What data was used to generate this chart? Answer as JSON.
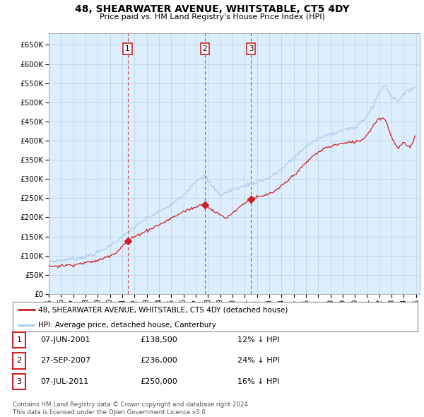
{
  "title": "48, SHEARWATER AVENUE, WHITSTABLE, CT5 4DY",
  "subtitle": "Price paid vs. HM Land Registry's House Price Index (HPI)",
  "hpi_color": "#aaccee",
  "price_color": "#cc2222",
  "dashed_color": "#cc2222",
  "bg_color": "#ffffff",
  "grid_color": "#bbccdd",
  "plot_bg": "#ddeeff",
  "ylim": [
    0,
    680000
  ],
  "yticks": [
    0,
    50000,
    100000,
    150000,
    200000,
    250000,
    300000,
    350000,
    400000,
    450000,
    500000,
    550000,
    600000,
    650000
  ],
  "year_start": 1995,
  "year_end": 2025,
  "sales": [
    {
      "label": "1",
      "date": "07-JUN-2001",
      "price": 138500,
      "year": 2001.44,
      "hpi_pct": "12% ↓ HPI"
    },
    {
      "label": "2",
      "date": "27-SEP-2007",
      "price": 236000,
      "year": 2007.74,
      "hpi_pct": "24% ↓ HPI"
    },
    {
      "label": "3",
      "date": "07-JUL-2011",
      "price": 250000,
      "year": 2011.52,
      "hpi_pct": "16% ↓ HPI"
    }
  ],
  "legend_line1": "48, SHEARWATER AVENUE, WHITSTABLE, CT5 4DY (detached house)",
  "legend_line2": "HPI: Average price, detached house, Canterbury",
  "footnote": "Contains HM Land Registry data © Crown copyright and database right 2024.\nThis data is licensed under the Open Government Licence v3.0.",
  "hpi_anchors_x": [
    1995.0,
    1996.0,
    1997.0,
    1998.0,
    1999.0,
    2000.0,
    2001.0,
    2002.0,
    2003.0,
    2004.0,
    2005.0,
    2006.0,
    2007.0,
    2007.75,
    2008.0,
    2009.0,
    2010.0,
    2011.0,
    2012.0,
    2013.0,
    2014.0,
    2015.0,
    2016.0,
    2017.0,
    2018.0,
    2019.0,
    2020.0,
    2021.0,
    2021.5,
    2022.0,
    2022.5,
    2023.0,
    2023.5,
    2024.0,
    2024.5,
    2024.9
  ],
  "hpi_anchors_y": [
    85000,
    88000,
    91000,
    97000,
    108000,
    126000,
    148000,
    175000,
    197000,
    215000,
    232000,
    258000,
    295000,
    310000,
    295000,
    258000,
    272000,
    283000,
    292000,
    302000,
    325000,
    355000,
    385000,
    405000,
    418000,
    428000,
    432000,
    465000,
    490000,
    530000,
    545000,
    515000,
    505000,
    520000,
    535000,
    540000
  ],
  "price_anchors_x": [
    1995.0,
    1997.0,
    1999.0,
    2000.5,
    2001.44,
    2002.5,
    2004.0,
    2006.0,
    2007.74,
    2008.5,
    2009.5,
    2010.5,
    2011.52,
    2012.5,
    2013.5,
    2014.5,
    2015.5,
    2016.5,
    2017.5,
    2018.5,
    2019.5,
    2020.5,
    2021.0,
    2021.5,
    2022.0,
    2022.5,
    2023.0,
    2023.5,
    2024.0,
    2024.5,
    2024.9
  ],
  "price_anchors_y": [
    72000,
    76000,
    87000,
    108000,
    138500,
    158000,
    180000,
    215000,
    236000,
    215000,
    198000,
    225000,
    250000,
    255000,
    268000,
    295000,
    325000,
    358000,
    380000,
    390000,
    395000,
    400000,
    415000,
    440000,
    460000,
    455000,
    410000,
    380000,
    395000,
    380000,
    410000
  ]
}
